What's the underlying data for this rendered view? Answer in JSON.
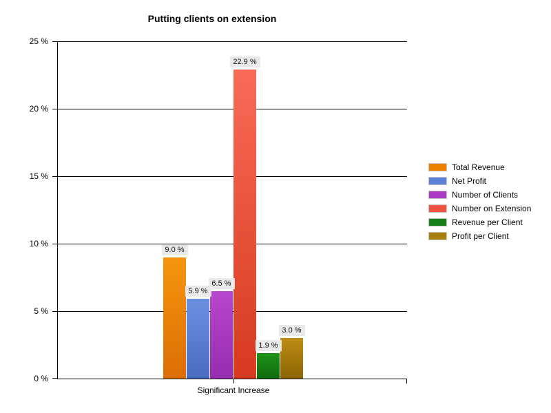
{
  "chart_data": {
    "type": "bar",
    "title": "Putting clients on extension",
    "categories": [
      "Significant Increase"
    ],
    "ylabel": "",
    "xlabel": "",
    "ylim": [
      0,
      25
    ],
    "ytick_step": 5,
    "yticks": [
      "0 %",
      "5 %",
      "10 %",
      "15 %",
      "20 %",
      "25 %"
    ],
    "grid": "horizontal",
    "legend_position": "right",
    "series": [
      {
        "name": "Total Revenue",
        "value": 9.0,
        "label": "9.0 %",
        "color_top": "#f6950f",
        "color_bottom": "#db6e03",
        "legend_color": "#ee8100"
      },
      {
        "name": "Net Profit",
        "value": 5.9,
        "label": "5.9 %",
        "color_top": "#6c90e0",
        "color_bottom": "#4a6cc0",
        "legend_color": "#5c80d5"
      },
      {
        "name": "Number of Clients",
        "value": 6.5,
        "label": "6.5 %",
        "color_top": "#b946ce",
        "color_bottom": "#962db0",
        "legend_color": "#a93bc4"
      },
      {
        "name": "Number on Extension",
        "value": 22.9,
        "label": "22.9 %",
        "color_top": "#f96a57",
        "color_bottom": "#d63a20",
        "legend_color": "#ef5340"
      },
      {
        "name": "Revenue per Client",
        "value": 1.9,
        "label": "1.9 %",
        "color_top": "#1f9418",
        "color_bottom": "#0f6a0f",
        "legend_color": "#177f17"
      },
      {
        "name": "Profit per Client",
        "value": 3.0,
        "label": "3.0 %",
        "color_top": "#be8d12",
        "color_bottom": "#8a6406",
        "legend_color": "#a87e0f"
      }
    ]
  }
}
